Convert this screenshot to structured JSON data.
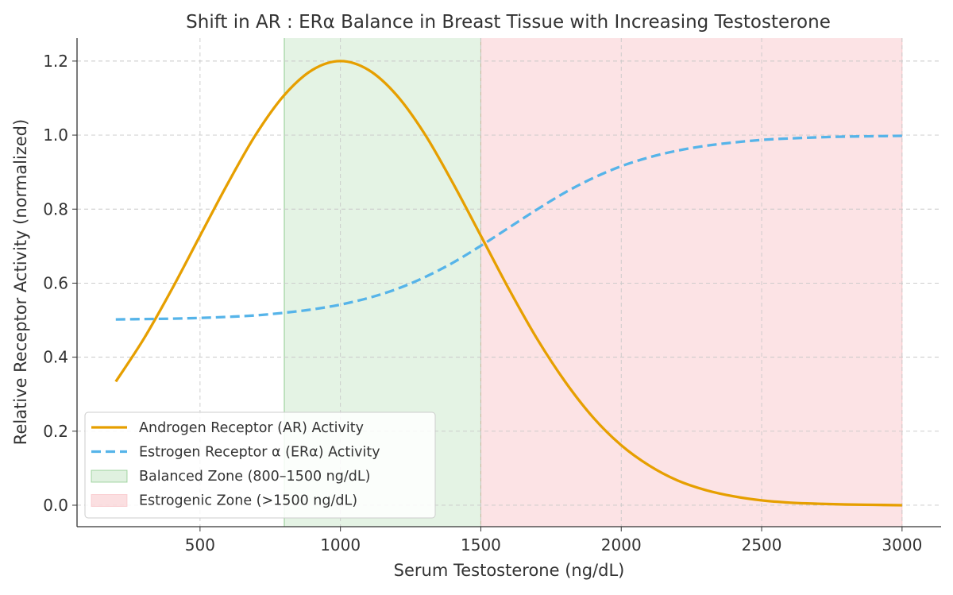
{
  "chart_data": {
    "type": "line",
    "title": "Shift in AR : ERα Balance in Breast Tissue with Increasing Testosterone",
    "xlabel": "Serum Testosterone (ng/dL)",
    "ylabel": "Relative Receptor Activity (normalized)",
    "xlim": [
      62,
      3139
    ],
    "ylim": [
      -0.058,
      1.262
    ],
    "xticks": [
      500,
      1000,
      1500,
      2000,
      2500,
      3000
    ],
    "yticks": [
      "0.0",
      "0.2",
      "0.4",
      "0.6",
      "0.8",
      "1.0",
      "1.2"
    ],
    "grid": true,
    "legend_position": "lower-left",
    "x": [
      200,
      300,
      400,
      500,
      600,
      700,
      800,
      900,
      1000,
      1100,
      1200,
      1300,
      1400,
      1500,
      1600,
      1700,
      1800,
      1900,
      2000,
      2100,
      2200,
      2300,
      2400,
      2500,
      2600,
      2700,
      2800,
      2900,
      3000
    ],
    "series": [
      {
        "name": "Androgen Receptor (AR) Activity",
        "color": "#E69F00",
        "style": "solid",
        "values": [
          0.334,
          0.45,
          0.584,
          0.728,
          0.871,
          1.003,
          1.108,
          1.176,
          1.2,
          1.176,
          1.108,
          1.003,
          0.871,
          0.728,
          0.584,
          0.45,
          0.334,
          0.237,
          0.162,
          0.107,
          0.067,
          0.041,
          0.024,
          0.013,
          0.007,
          0.004,
          0.002,
          0.001,
          0.0
        ]
      },
      {
        "name": "Estrogen Receptor α (ERα) Activity",
        "color": "#56B4E9",
        "style": "dashed",
        "values": [
          0.502,
          0.503,
          0.504,
          0.506,
          0.509,
          0.513,
          0.52,
          0.529,
          0.542,
          0.56,
          0.584,
          0.616,
          0.655,
          0.701,
          0.75,
          0.799,
          0.845,
          0.884,
          0.916,
          0.94,
          0.958,
          0.971,
          0.98,
          0.987,
          0.991,
          0.994,
          0.996,
          0.997,
          0.998
        ]
      }
    ],
    "zones": [
      {
        "name": "Balanced Zone (800–1500 ng/dL)",
        "from": 800,
        "to": 1500,
        "color": "#2ca02c"
      },
      {
        "name": "Estrogenic Zone (>1500 ng/dL)",
        "from": 1500,
        "to": 3000,
        "color": "#f4a3a8"
      }
    ]
  }
}
